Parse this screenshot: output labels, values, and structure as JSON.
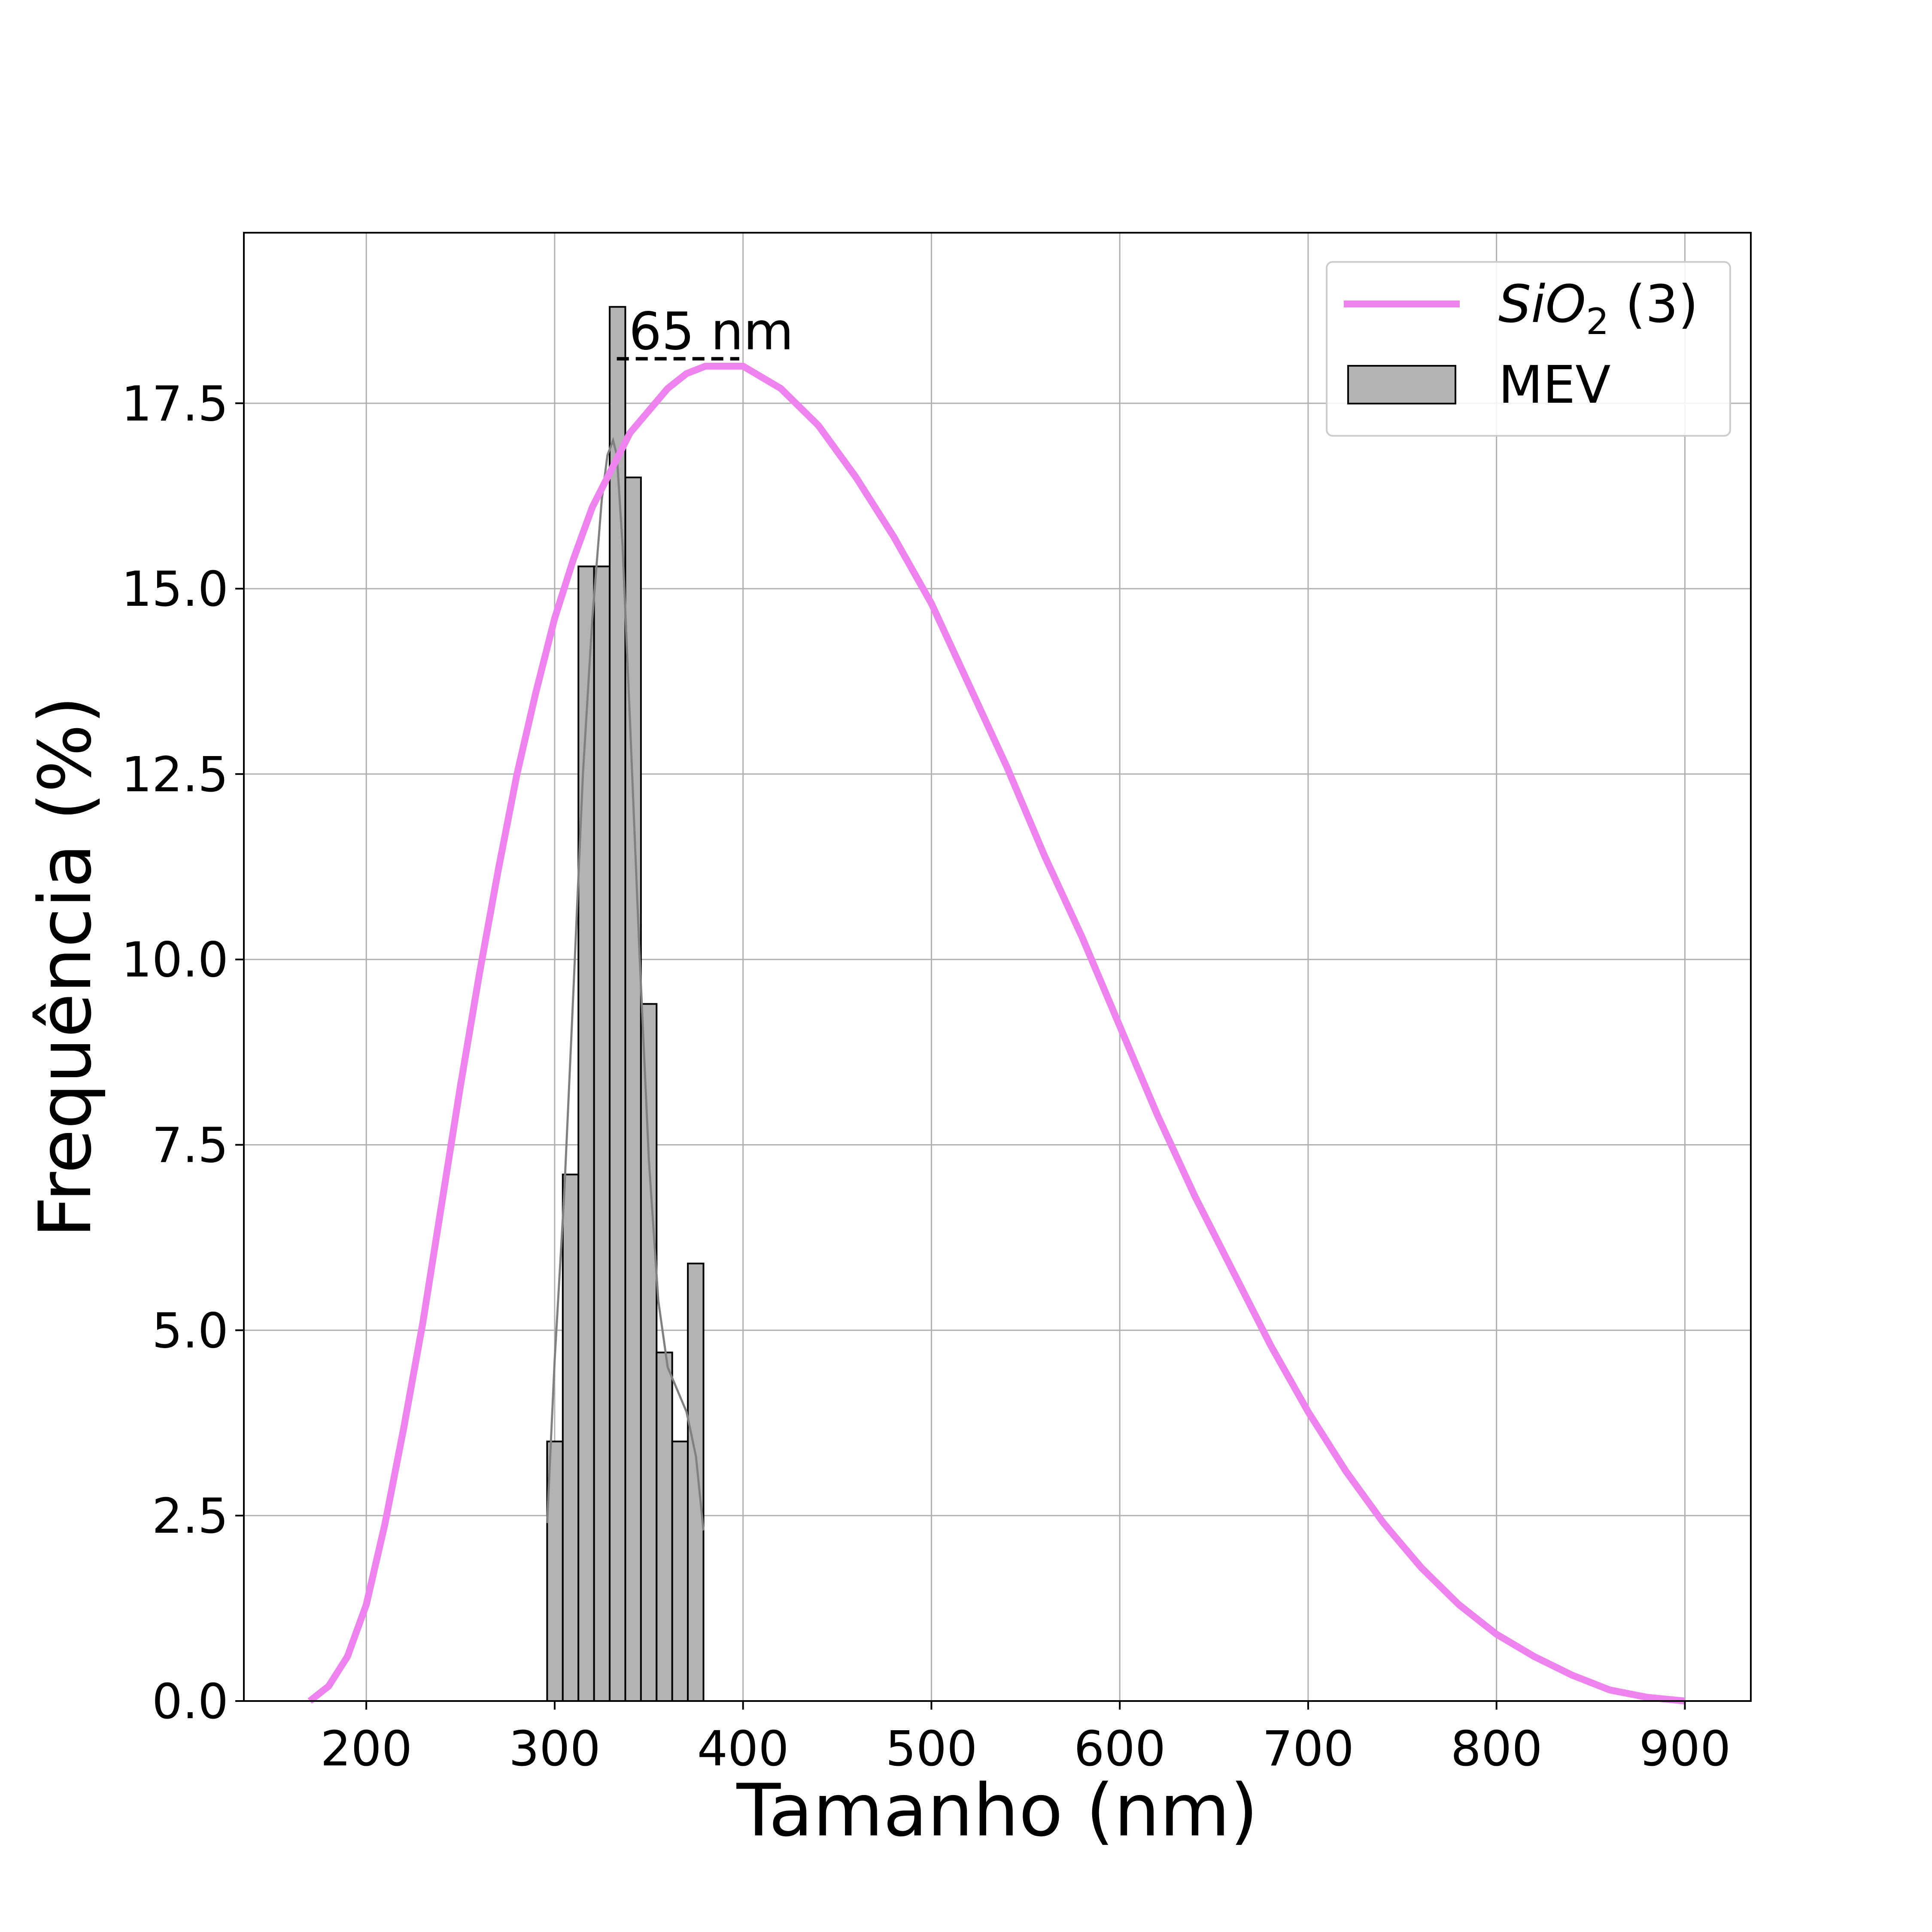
{
  "chart_data": {
    "type": "bar",
    "xlabel": "Tamanho (nm)",
    "ylabel": "Frequência (%)",
    "xlim": [
      135,
      935
    ],
    "ylim": [
      0,
      19.8
    ],
    "xticks": [
      200,
      300,
      400,
      500,
      600,
      700,
      800,
      900
    ],
    "yticks": [
      0.0,
      2.5,
      5.0,
      7.5,
      10.0,
      12.5,
      15.0,
      17.5
    ],
    "xtick_labels": [
      "200",
      "300",
      "400",
      "500",
      "600",
      "700",
      "800",
      "900"
    ],
    "ytick_labels": [
      "0.0",
      "2.5",
      "5.0",
      "7.5",
      "10.0",
      "12.5",
      "15.0",
      "17.5"
    ],
    "grid": true,
    "legend_position": "top-right",
    "histogram": {
      "name": "MEV",
      "color": "#b3b3b3",
      "edge_color": "#000000",
      "bin_edges": [
        296,
        304.3,
        312.6,
        320.9,
        329.2,
        337.5,
        345.8,
        354.1,
        362.4,
        370.7,
        379
      ],
      "values": [
        3.5,
        7.1,
        15.3,
        15.3,
        18.8,
        16.5,
        9.4,
        4.7,
        3.5,
        5.9
      ]
    },
    "kde": {
      "color": "#808080",
      "x": [
        296,
        300,
        305,
        310,
        315,
        320,
        325,
        328,
        331,
        333,
        336,
        340,
        345,
        350,
        355,
        360,
        365,
        370,
        375,
        379
      ],
      "y": [
        2.4,
        4.6,
        6.8,
        9.6,
        12.5,
        14.6,
        16.2,
        16.8,
        17.0,
        16.8,
        15.6,
        13.2,
        10.1,
        7.3,
        5.4,
        4.5,
        4.2,
        3.9,
        3.3,
        2.3
      ]
    },
    "curve": {
      "name": "SiO",
      "name_sub": "2",
      "name_suffix": " (3)",
      "color": "#ee82ee",
      "x": [
        170,
        180,
        190,
        200,
        210,
        220,
        230,
        240,
        250,
        260,
        270,
        280,
        290,
        300,
        310,
        320,
        330,
        340,
        350,
        360,
        370,
        380,
        390,
        400,
        420,
        440,
        460,
        480,
        500,
        520,
        540,
        560,
        580,
        600,
        620,
        640,
        660,
        680,
        700,
        720,
        740,
        760,
        780,
        800,
        820,
        840,
        860,
        880,
        900
      ],
      "y": [
        0.0,
        0.2,
        0.6,
        1.3,
        2.4,
        3.7,
        5.1,
        6.7,
        8.3,
        9.8,
        11.2,
        12.5,
        13.6,
        14.6,
        15.4,
        16.1,
        16.6,
        17.1,
        17.4,
        17.7,
        17.9,
        18.0,
        18.0,
        18.0,
        17.7,
        17.2,
        16.5,
        15.7,
        14.8,
        13.7,
        12.6,
        11.4,
        10.3,
        9.1,
        7.9,
        6.8,
        5.8,
        4.8,
        3.9,
        3.1,
        2.4,
        1.8,
        1.3,
        0.9,
        0.6,
        0.35,
        0.15,
        0.05,
        0.0
      ]
    },
    "annotation": {
      "text": "65 nm",
      "x_start": 333,
      "x_end": 398,
      "y": 18.1
    }
  }
}
